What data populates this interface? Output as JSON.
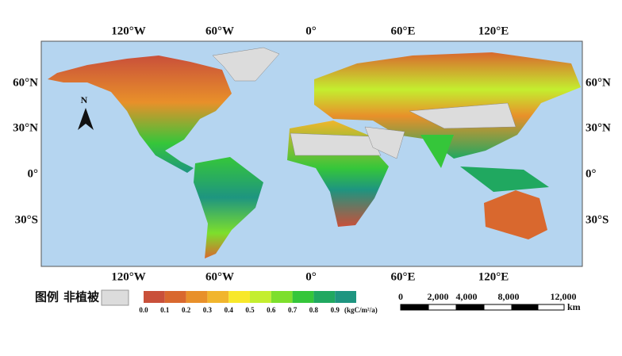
{
  "map": {
    "lon_labels": [
      "120°W",
      "60°W",
      "0°",
      "60°E",
      "120°E"
    ],
    "lat_labels": [
      "60°N",
      "30°N",
      "0°",
      "30°S"
    ],
    "north": "N",
    "legend": {
      "title": "图例",
      "nonveg": "非植被",
      "levels": [
        "0.0",
        "0.1",
        "0.2",
        "0.3",
        "0.4",
        "0.5",
        "0.6",
        "0.7",
        "0.8",
        "0.9"
      ],
      "colors": [
        "#c9503a",
        "#d9682e",
        "#e8902a",
        "#f1b52d",
        "#f8e82a",
        "#c4ee2f",
        "#7ddf2c",
        "#35c63a",
        "#20a860",
        "#1e9580"
      ],
      "unit": "(kgC/m²/a)"
    },
    "scale": {
      "labels": [
        "0",
        "2,000",
        "4,000",
        "8,000",
        "12,000"
      ],
      "unit": "km"
    }
  }
}
